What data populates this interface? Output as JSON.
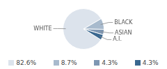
{
  "chart_data": {
    "type": "pie",
    "categories": [
      "WHITE",
      "BLACK",
      "ASIAN",
      "A.I."
    ],
    "values": [
      82.6,
      8.7,
      4.3,
      4.3
    ],
    "value_labels": [
      "82.6%",
      "8.7%",
      "4.3%",
      "4.3%"
    ],
    "colors": [
      "#dce3ec",
      "#a8bacd",
      "#7e97b3",
      "#3a6890"
    ],
    "legend": "bottom"
  }
}
